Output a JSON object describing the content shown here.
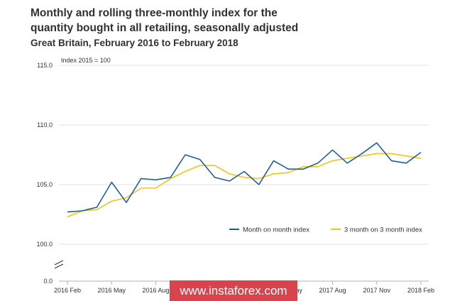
{
  "header": {
    "title": "Monthly and rolling three-monthly index for the quantity bought in all retailing, seasonally adjusted",
    "subtitle": "Great Britain, February 2016 to February 2018"
  },
  "watermark": {
    "text": "www.instaforex.com"
  },
  "chart_data": {
    "type": "line",
    "unit_label": "Index 2015 = 100",
    "y_ticks": [
      "115.0",
      "110.0",
      "105.0",
      "100.0",
      "0.0"
    ],
    "y_tick_values": [
      115,
      110,
      105,
      100,
      98.5
    ],
    "ylim": [
      98.5,
      115
    ],
    "axis_break": true,
    "grid": true,
    "legend_position": "bottom-right",
    "x_tick_labels": [
      "2016 Feb",
      "2016 May",
      "2016 Aug",
      "2016 Nov",
      "2017 Feb",
      "2017 May",
      "2017 Aug",
      "2017 Nov",
      "2018 Feb"
    ],
    "x": [
      "2016 Feb",
      "2016 Mar",
      "2016 Apr",
      "2016 May",
      "2016 Jun",
      "2016 Jul",
      "2016 Aug",
      "2016 Sep",
      "2016 Oct",
      "2016 Nov",
      "2016 Dec",
      "2017 Jan",
      "2017 Feb",
      "2017 Mar",
      "2017 Apr",
      "2017 May",
      "2017 Jun",
      "2017 Jul",
      "2017 Aug",
      "2017 Sep",
      "2017 Oct",
      "2017 Nov",
      "2017 Dec",
      "2018 Jan",
      "2018 Feb"
    ],
    "series": [
      {
        "name": "Month on month index",
        "color": "#206095",
        "values": [
          102.7,
          102.8,
          103.1,
          105.2,
          103.5,
          105.5,
          105.4,
          105.6,
          107.5,
          107.1,
          105.6,
          105.3,
          106.1,
          105.0,
          107.0,
          106.3,
          106.3,
          106.8,
          107.9,
          106.8,
          107.6,
          108.5,
          107.0,
          106.8,
          107.7
        ]
      },
      {
        "name": "3 month on 3 month index",
        "color": "#f0c419",
        "values": [
          102.3,
          102.8,
          102.9,
          103.6,
          103.9,
          104.7,
          104.7,
          105.5,
          106.1,
          106.6,
          106.6,
          105.9,
          105.6,
          105.5,
          105.9,
          106.0,
          106.5,
          106.5,
          107.0,
          107.2,
          107.4,
          107.6,
          107.6,
          107.4,
          107.2
        ]
      }
    ]
  }
}
